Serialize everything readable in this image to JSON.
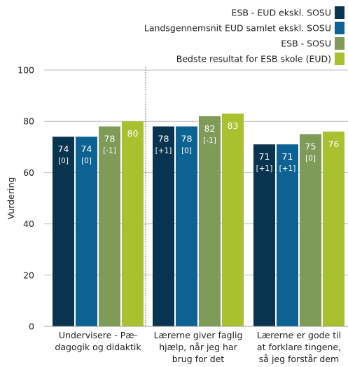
{
  "chart_data": {
    "type": "bar",
    "ylabel": "Vurdering",
    "ylim": [
      0,
      100
    ],
    "yticks": [
      0,
      20,
      40,
      60,
      80,
      100
    ],
    "legend_position": "top-right",
    "group_separator": "dotted",
    "categories": [
      [
        "Undervisere - Pæ-",
        "dagogik og didaktik"
      ],
      [
        "Lærerne giver faglig",
        "hjælp, når jeg har",
        "brug for det"
      ],
      [
        "Lærerne er gode til",
        "at forklare tingene,",
        "så jeg forstår dem"
      ]
    ],
    "series": [
      {
        "name": "ESB - EUD ekskl. SOSU",
        "color": "#08344f",
        "values": [
          74,
          78,
          71
        ],
        "diffs": [
          "[0]",
          "[+1]",
          "[+1]"
        ]
      },
      {
        "name": "Landsgennemsnit EUD samlet ekskl. SOSU",
        "color": "#0b6293",
        "values": [
          74,
          78,
          71
        ],
        "diffs": [
          "[0]",
          "[0]",
          "[+1]"
        ]
      },
      {
        "name": "ESB - SOSU",
        "color": "#7e9b57",
        "values": [
          78,
          82,
          75
        ],
        "diffs": [
          "[-1]",
          "[-1]",
          "[0]"
        ]
      },
      {
        "name": "Bedste resultat for ESB skole (EUD)",
        "color": "#a9c02f",
        "values": [
          80,
          83,
          76
        ],
        "diffs": [
          "",
          "",
          ""
        ]
      }
    ]
  }
}
